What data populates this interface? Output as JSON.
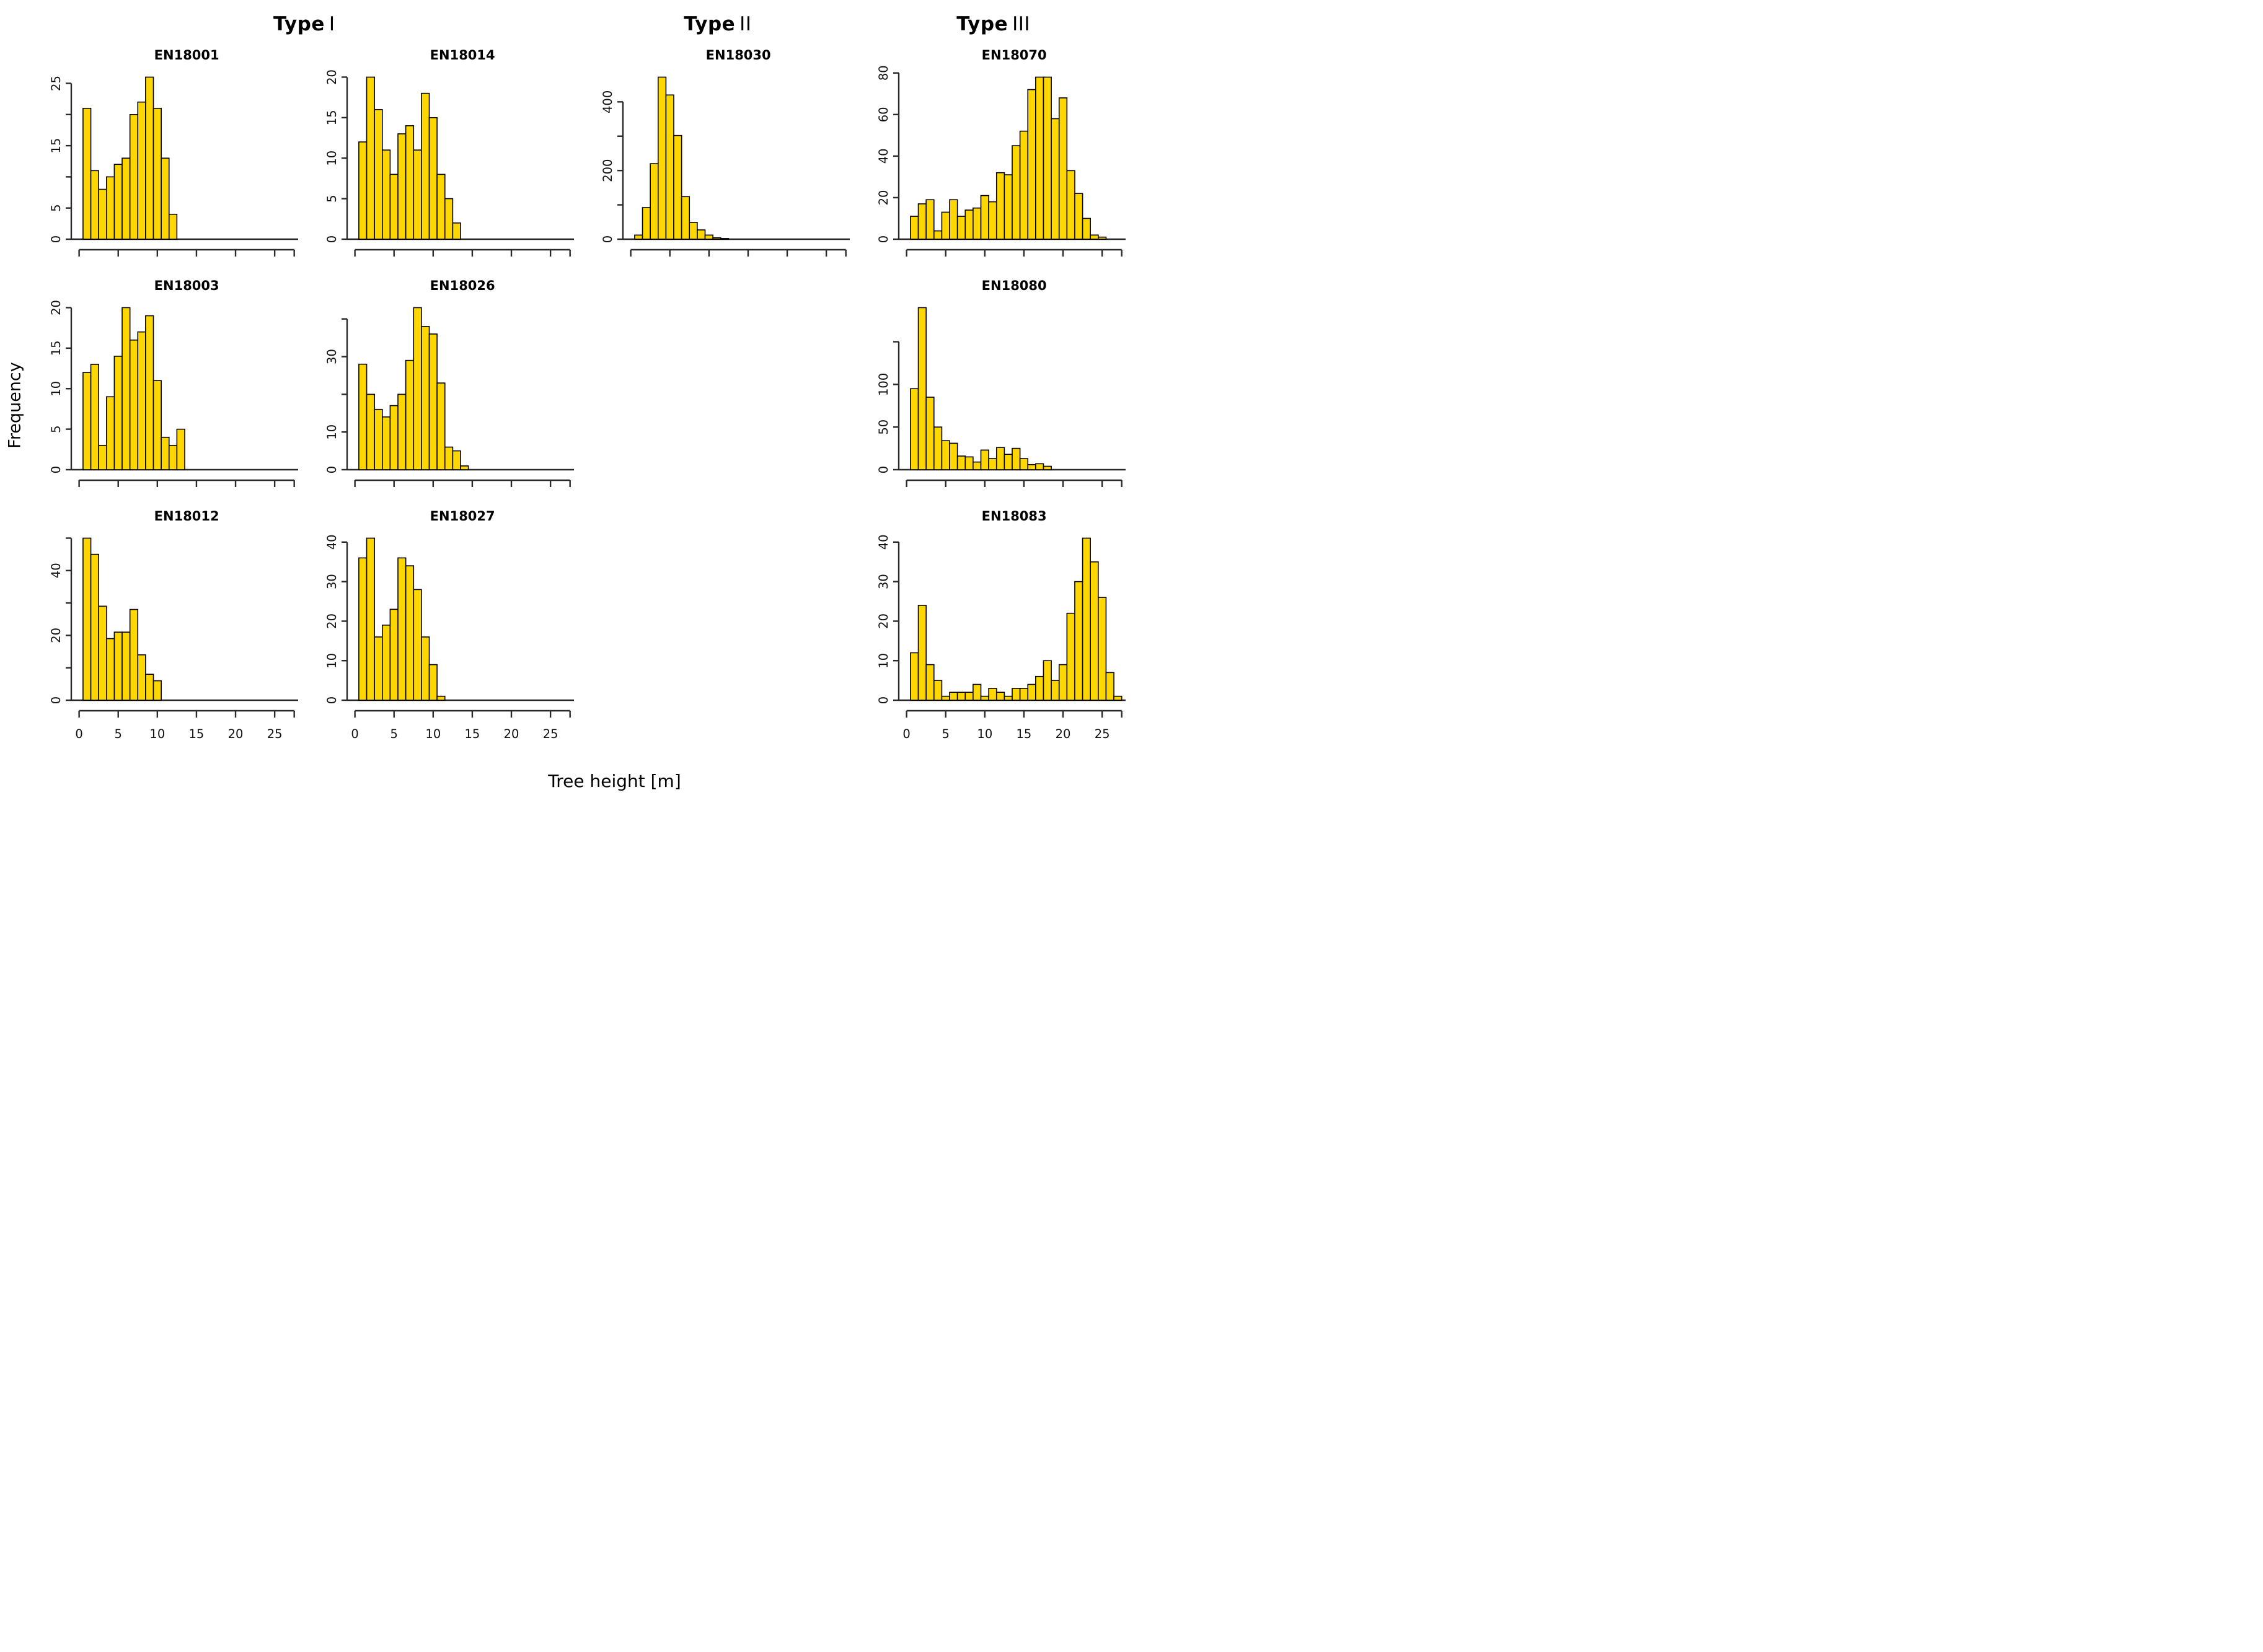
{
  "page": {
    "headers": [
      {
        "word": "Type",
        "numeral": "I"
      },
      {
        "word": "Type",
        "numeral": "II"
      },
      {
        "word": "Type",
        "numeral": "III"
      }
    ],
    "ylabel": "Frequency",
    "xlabel": "Tree height [m]",
    "bar_fill": "#FFD700",
    "bar_stroke": "#000000",
    "axis_color": "#2a2a2a"
  },
  "chart_data": [
    {
      "type": "bar",
      "title": "EN18001",
      "grid": {
        "row": 1,
        "col": 1
      },
      "bin_start": 0.5,
      "bin_width": 1,
      "values": [
        21,
        11,
        8,
        10,
        12,
        13,
        20,
        22,
        26,
        21,
        13,
        4
      ],
      "ylim": [
        0,
        26
      ],
      "yticks": [
        0,
        5,
        10,
        15,
        20,
        25
      ],
      "ytick_labels": [
        "0",
        "5",
        "",
        "15",
        "",
        "25"
      ],
      "xticks": [
        0,
        5,
        10,
        15,
        20,
        25
      ],
      "xtick_labels": [
        "0",
        "5",
        "10",
        "15",
        "20",
        "25"
      ],
      "show_x_labels": false,
      "x_axis_end": 27.5,
      "legend": "none",
      "gridlines": false
    },
    {
      "type": "bar",
      "title": "EN18014",
      "grid": {
        "row": 1,
        "col": 2
      },
      "bin_start": 0.5,
      "bin_width": 1,
      "values": [
        12,
        20,
        16,
        11,
        8,
        13,
        14,
        11,
        18,
        15,
        8,
        5,
        2
      ],
      "ylim": [
        0,
        20
      ],
      "yticks": [
        0,
        5,
        10,
        15,
        20
      ],
      "ytick_labels": [
        "0",
        "5",
        "10",
        "15",
        "20"
      ],
      "xticks": [
        0,
        5,
        10,
        15,
        20,
        25
      ],
      "xtick_labels": [
        "0",
        "5",
        "10",
        "15",
        "20",
        "25"
      ],
      "show_x_labels": false,
      "x_axis_end": 27.5,
      "legend": "none",
      "gridlines": false
    },
    {
      "type": "bar",
      "title": "EN18030",
      "grid": {
        "row": 1,
        "col": 3
      },
      "bin_start": 0.5,
      "bin_width": 1,
      "values": [
        12,
        92,
        220,
        472,
        420,
        302,
        124,
        49,
        27,
        12,
        4,
        2
      ],
      "ylim": [
        0,
        472
      ],
      "yticks": [
        0,
        100,
        200,
        300,
        400
      ],
      "ytick_labels": [
        "0",
        "",
        "200",
        "",
        "400"
      ],
      "xticks": [
        0,
        5,
        10,
        15,
        20,
        25
      ],
      "xtick_labels": [
        "0",
        "5",
        "10",
        "15",
        "20",
        "25"
      ],
      "show_x_labels": false,
      "x_axis_end": 27.5,
      "legend": "none",
      "gridlines": false
    },
    {
      "type": "bar",
      "title": "EN18070",
      "grid": {
        "row": 1,
        "col": 4
      },
      "bin_start": 0.5,
      "bin_width": 1,
      "values": [
        11,
        17,
        19,
        4,
        13,
        19,
        11,
        14,
        15,
        21,
        18,
        32,
        31,
        45,
        52,
        72,
        78,
        78,
        58,
        68,
        33,
        22,
        10,
        2,
        1
      ],
      "ylim": [
        0,
        80
      ],
      "yticks": [
        0,
        20,
        40,
        60,
        80
      ],
      "ytick_labels": [
        "0",
        "20",
        "40",
        "60",
        "80"
      ],
      "xticks": [
        0,
        5,
        10,
        15,
        20,
        25
      ],
      "xtick_labels": [
        "0",
        "5",
        "10",
        "15",
        "20",
        "25"
      ],
      "show_x_labels": false,
      "x_axis_end": 27.5,
      "legend": "none",
      "gridlines": false
    },
    {
      "type": "bar",
      "title": "EN18003",
      "grid": {
        "row": 2,
        "col": 1
      },
      "bin_start": 0.5,
      "bin_width": 1,
      "values": [
        12,
        13,
        3,
        9,
        14,
        20,
        16,
        17,
        19,
        11,
        4,
        3,
        5
      ],
      "ylim": [
        0,
        20
      ],
      "yticks": [
        0,
        5,
        10,
        15,
        20
      ],
      "ytick_labels": [
        "0",
        "5",
        "10",
        "15",
        "20"
      ],
      "xticks": [
        0,
        5,
        10,
        15,
        20,
        25
      ],
      "xtick_labels": [
        "0",
        "5",
        "10",
        "15",
        "20",
        "25"
      ],
      "show_x_labels": false,
      "x_axis_end": 27.5,
      "legend": "none",
      "gridlines": false
    },
    {
      "type": "bar",
      "title": "EN18026",
      "grid": {
        "row": 2,
        "col": 2
      },
      "bin_start": 0.5,
      "bin_width": 1,
      "values": [
        28,
        20,
        16,
        14,
        17,
        20,
        29,
        43,
        38,
        36,
        23,
        6,
        5,
        1
      ],
      "ylim": [
        0,
        43
      ],
      "yticks": [
        0,
        10,
        20,
        30,
        40
      ],
      "ytick_labels": [
        "0",
        "10",
        "",
        "30",
        ""
      ],
      "xticks": [
        0,
        5,
        10,
        15,
        20,
        25
      ],
      "xtick_labels": [
        "0",
        "5",
        "10",
        "15",
        "20",
        "25"
      ],
      "show_x_labels": false,
      "x_axis_end": 27.5,
      "legend": "none",
      "gridlines": false
    },
    {
      "type": "bar",
      "title": "EN18080",
      "grid": {
        "row": 2,
        "col": 4
      },
      "bin_start": 0.5,
      "bin_width": 1,
      "values": [
        95,
        190,
        85,
        50,
        34,
        31,
        16,
        15,
        9,
        23,
        13,
        26,
        18,
        25,
        13,
        6,
        7,
        4
      ],
      "ylim": [
        0,
        190
      ],
      "yticks": [
        0,
        50,
        100,
        150
      ],
      "ytick_labels": [
        "0",
        "50",
        "100",
        ""
      ],
      "xticks": [
        0,
        5,
        10,
        15,
        20,
        25
      ],
      "xtick_labels": [
        "0",
        "5",
        "10",
        "15",
        "20",
        "25"
      ],
      "show_x_labels": false,
      "x_axis_end": 27.5,
      "legend": "none",
      "gridlines": false
    },
    {
      "type": "bar",
      "title": "EN18012",
      "grid": {
        "row": 3,
        "col": 1
      },
      "bin_start": 0.5,
      "bin_width": 1,
      "values": [
        50,
        45,
        29,
        19,
        21,
        21,
        28,
        14,
        8,
        6
      ],
      "ylim": [
        0,
        50
      ],
      "yticks": [
        0,
        10,
        20,
        30,
        40,
        50
      ],
      "ytick_labels": [
        "0",
        "",
        "20",
        "",
        "40",
        ""
      ],
      "xticks": [
        0,
        5,
        10,
        15,
        20,
        25
      ],
      "xtick_labels": [
        "0",
        "5",
        "10",
        "15",
        "20",
        "25"
      ],
      "show_x_labels": true,
      "x_axis_end": 27.5,
      "legend": "none",
      "gridlines": false
    },
    {
      "type": "bar",
      "title": "EN18027",
      "grid": {
        "row": 3,
        "col": 2
      },
      "bin_start": 0.5,
      "bin_width": 1,
      "values": [
        36,
        41,
        16,
        19,
        23,
        36,
        34,
        28,
        16,
        9,
        1
      ],
      "ylim": [
        0,
        41
      ],
      "yticks": [
        0,
        10,
        20,
        30,
        40
      ],
      "ytick_labels": [
        "0",
        "10",
        "20",
        "30",
        "40"
      ],
      "xticks": [
        0,
        5,
        10,
        15,
        20,
        25
      ],
      "xtick_labels": [
        "0",
        "5",
        "10",
        "15",
        "20",
        "25"
      ],
      "show_x_labels": true,
      "x_axis_end": 27.5,
      "legend": "none",
      "gridlines": false
    },
    {
      "type": "bar",
      "title": "EN18083",
      "grid": {
        "row": 3,
        "col": 4
      },
      "bin_start": 0.5,
      "bin_width": 1,
      "values": [
        12,
        24,
        9,
        5,
        1,
        2,
        2,
        2,
        4,
        1,
        3,
        2,
        1,
        3,
        3,
        4,
        6,
        10,
        5,
        9,
        22,
        30,
        41,
        35,
        26,
        7,
        1
      ],
      "ylim": [
        0,
        41
      ],
      "yticks": [
        0,
        10,
        20,
        30,
        40
      ],
      "ytick_labels": [
        "0",
        "10",
        "20",
        "30",
        "40"
      ],
      "xticks": [
        0,
        5,
        10,
        15,
        20,
        25
      ],
      "xtick_labels": [
        "0",
        "5",
        "10",
        "15",
        "20",
        "25"
      ],
      "show_x_labels": true,
      "x_axis_end": 27.5,
      "legend": "none",
      "gridlines": false
    }
  ]
}
